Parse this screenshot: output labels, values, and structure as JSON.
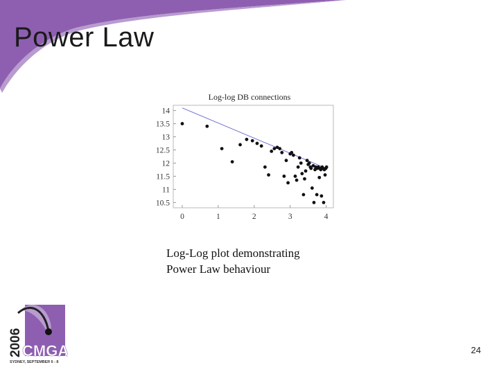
{
  "slide": {
    "title": "Power Law",
    "caption_line1": "Log-Log plot demonstrating",
    "caption_line2": "Power Law behaviour",
    "page_number": "24",
    "accent_color": "#8e5fb0"
  },
  "logo": {
    "year": "2006",
    "name": "CMGA",
    "tagline": "SYDNEY, SEPTEMBER 6 - 8",
    "color": "#8e5fb0"
  },
  "chart_data": {
    "type": "scatter",
    "title": "Log-log DB connections",
    "xlabel": "",
    "ylabel": "",
    "xlim": [
      -0.25,
      4.2
    ],
    "ylim": [
      10.3,
      14.2
    ],
    "xticks": [
      0,
      1,
      2,
      3,
      4
    ],
    "yticks": [
      10.5,
      11,
      11.5,
      12,
      12.5,
      13,
      13.5,
      14
    ],
    "grid": false,
    "fit_line": {
      "x": [
        0,
        4
      ],
      "y": [
        14.1,
        11.8
      ]
    },
    "points": [
      {
        "x": 0.0,
        "y": 13.5
      },
      {
        "x": 0.69,
        "y": 13.4
      },
      {
        "x": 1.1,
        "y": 12.55
      },
      {
        "x": 1.39,
        "y": 12.05
      },
      {
        "x": 1.61,
        "y": 12.7
      },
      {
        "x": 1.79,
        "y": 12.9
      },
      {
        "x": 1.95,
        "y": 12.85
      },
      {
        "x": 2.08,
        "y": 12.75
      },
      {
        "x": 2.2,
        "y": 12.65
      },
      {
        "x": 2.3,
        "y": 11.85
      },
      {
        "x": 2.4,
        "y": 11.55
      },
      {
        "x": 2.48,
        "y": 12.45
      },
      {
        "x": 2.56,
        "y": 12.55
      },
      {
        "x": 2.64,
        "y": 12.6
      },
      {
        "x": 2.71,
        "y": 12.55
      },
      {
        "x": 2.77,
        "y": 12.4
      },
      {
        "x": 2.83,
        "y": 11.5
      },
      {
        "x": 2.89,
        "y": 12.1
      },
      {
        "x": 2.94,
        "y": 11.25
      },
      {
        "x": 3.0,
        "y": 12.35
      },
      {
        "x": 3.04,
        "y": 12.4
      },
      {
        "x": 3.09,
        "y": 12.3
      },
      {
        "x": 3.14,
        "y": 11.5
      },
      {
        "x": 3.18,
        "y": 11.35
      },
      {
        "x": 3.22,
        "y": 11.85
      },
      {
        "x": 3.26,
        "y": 12.2
      },
      {
        "x": 3.3,
        "y": 12.0
      },
      {
        "x": 3.33,
        "y": 11.6
      },
      {
        "x": 3.37,
        "y": 10.8
      },
      {
        "x": 3.4,
        "y": 11.4
      },
      {
        "x": 3.43,
        "y": 11.7
      },
      {
        "x": 3.47,
        "y": 12.1
      },
      {
        "x": 3.5,
        "y": 11.95
      },
      {
        "x": 3.53,
        "y": 12.0
      },
      {
        "x": 3.56,
        "y": 11.85
      },
      {
        "x": 3.58,
        "y": 11.8
      },
      {
        "x": 3.61,
        "y": 11.05
      },
      {
        "x": 3.64,
        "y": 11.9
      },
      {
        "x": 3.66,
        "y": 10.5
      },
      {
        "x": 3.69,
        "y": 11.75
      },
      {
        "x": 3.71,
        "y": 11.85
      },
      {
        "x": 3.74,
        "y": 10.8
      },
      {
        "x": 3.76,
        "y": 11.8
      },
      {
        "x": 3.78,
        "y": 11.85
      },
      {
        "x": 3.81,
        "y": 11.45
      },
      {
        "x": 3.83,
        "y": 11.8
      },
      {
        "x": 3.85,
        "y": 11.75
      },
      {
        "x": 3.87,
        "y": 10.75
      },
      {
        "x": 3.89,
        "y": 11.85
      },
      {
        "x": 3.91,
        "y": 11.8
      },
      {
        "x": 3.93,
        "y": 10.5
      },
      {
        "x": 3.95,
        "y": 11.75
      },
      {
        "x": 3.97,
        "y": 11.55
      },
      {
        "x": 3.99,
        "y": 11.8
      },
      {
        "x": 4.01,
        "y": 11.85
      }
    ]
  }
}
